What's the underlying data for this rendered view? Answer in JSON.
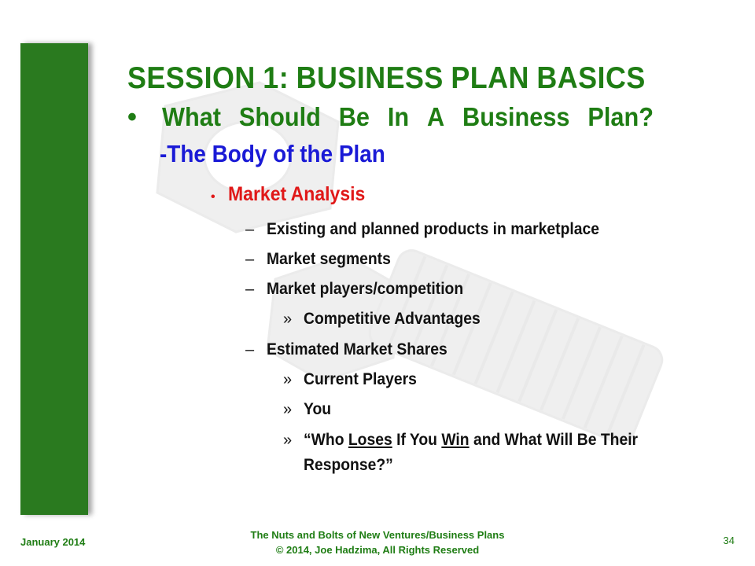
{
  "slide": {
    "title_words": [
      "SESSION",
      "1:",
      "BUSINESS",
      "PLAN",
      "BASICS"
    ],
    "bullet": "•",
    "subtitle_words": [
      "What",
      "Should",
      "Be",
      "In",
      "A",
      "Business",
      "Plan?"
    ],
    "body_heading": "-The Body of the Plan",
    "level1": {
      "marker": "•",
      "text": "Market Analysis"
    },
    "items": [
      {
        "level": 2,
        "marker": "–",
        "text": "Existing and planned products in marketplace"
      },
      {
        "level": 2,
        "marker": "–",
        "text": "Market segments"
      },
      {
        "level": 2,
        "marker": "–",
        "text": "Market players/competition"
      },
      {
        "level": 3,
        "marker": "»",
        "text": "Competitive Advantages"
      },
      {
        "level": 2,
        "marker": "–",
        "text": "Estimated Market Shares"
      },
      {
        "level": 3,
        "marker": "»",
        "text": "Current Players"
      },
      {
        "level": 3,
        "marker": "»",
        "text": "You"
      }
    ],
    "last_item": {
      "marker": "»",
      "open_quote": "“Who ",
      "loses": "Loses",
      "mid": " If You ",
      "win": "Win",
      "rest": " and What Will Be Their Response?”"
    }
  },
  "footer": {
    "date": "January 2014",
    "line1": "The Nuts and Bolts of New Ventures/Business Plans",
    "line2": "© 2014, Joe Hadzima, All Rights Reserved",
    "page_number": "34"
  },
  "colors": {
    "green": "#1f7d14",
    "bar": "#2a7a1f",
    "blue": "#1a1ad6",
    "red": "#e01818"
  },
  "icons": {
    "watermark": "bolt-and-nut-watermark"
  }
}
